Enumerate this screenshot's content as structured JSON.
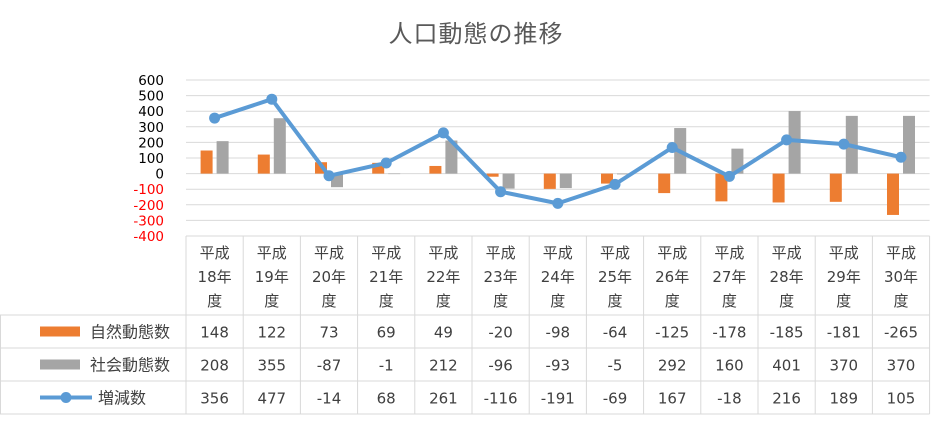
{
  "chart_data": {
    "type": "bar",
    "title": "人口動態の推移",
    "categories": [
      [
        "平成",
        "18年",
        "度"
      ],
      [
        "平成",
        "19年",
        "度"
      ],
      [
        "平成",
        "20年",
        "度"
      ],
      [
        "平成",
        "21年",
        "度"
      ],
      [
        "平成",
        "22年",
        "度"
      ],
      [
        "平成",
        "23年",
        "度"
      ],
      [
        "平成",
        "24年",
        "度"
      ],
      [
        "平成",
        "25年",
        "度"
      ],
      [
        "平成",
        "26年",
        "度"
      ],
      [
        "平成",
        "27年",
        "度"
      ],
      [
        "平成",
        "28年",
        "度"
      ],
      [
        "平成",
        "29年",
        "度"
      ],
      [
        "平成",
        "30年",
        "度"
      ]
    ],
    "ylim": [
      -400,
      600
    ],
    "yticks": [
      "600",
      "500",
      "400",
      "300",
      "200",
      "100",
      "0",
      "-100",
      "-200",
      "-300",
      "-400"
    ],
    "ytick_values": [
      600,
      500,
      400,
      300,
      200,
      100,
      0,
      -100,
      -200,
      -300,
      -400
    ],
    "negative_tick_color": "#ff0000",
    "positive_tick_color": "#000000",
    "grid": true,
    "legend_placement": "data-table",
    "series": [
      {
        "name": "自然動態数",
        "kind": "bar",
        "color": "#ed7d31",
        "values": [
          148,
          122,
          73,
          69,
          49,
          -20,
          -98,
          -64,
          -125,
          -178,
          -185,
          -181,
          -265
        ],
        "display": [
          "148",
          "122",
          "73",
          "69",
          "49",
          "-20",
          "-98",
          "-64",
          "-125",
          "-178",
          "-185",
          "-181",
          "-265"
        ]
      },
      {
        "name": "社会動態数",
        "kind": "bar",
        "color": "#a5a5a5",
        "values": [
          208,
          355,
          -87,
          -1,
          212,
          -96,
          -93,
          -5,
          292,
          160,
          401,
          370,
          370
        ],
        "display": [
          "208",
          "355",
          "-87",
          "-1",
          "212",
          "-96",
          "-93",
          "-5",
          "292",
          "160",
          "401",
          "370",
          "370"
        ]
      },
      {
        "name": "増減数",
        "kind": "line",
        "color": "#5b9bd5",
        "values": [
          356,
          477,
          -14,
          68,
          261,
          -116,
          -191,
          -69,
          167,
          -18,
          216,
          189,
          105
        ],
        "display": [
          "356",
          "477",
          "-14",
          "68",
          "261",
          "-116",
          "-191",
          "-69",
          "167",
          "-18",
          "216",
          "189",
          "105"
        ]
      }
    ]
  }
}
